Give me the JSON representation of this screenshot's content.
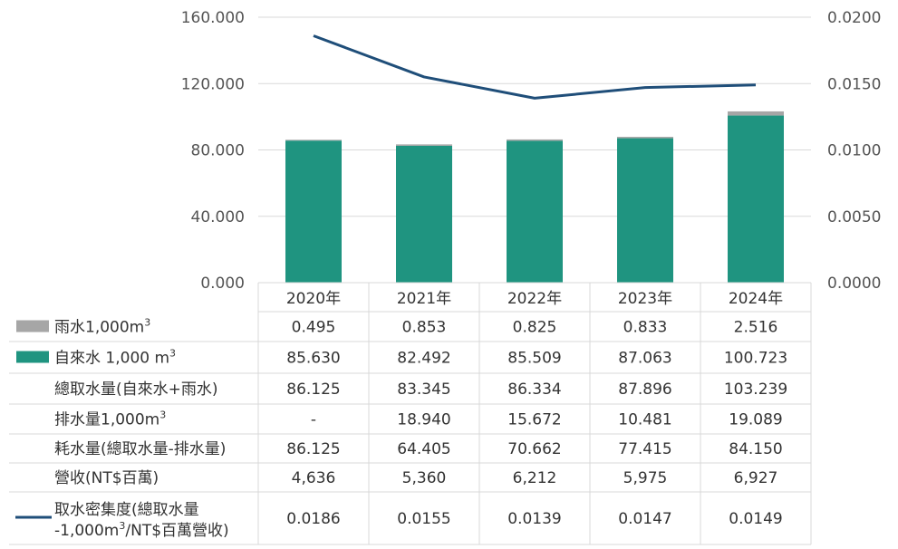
{
  "chart_data": {
    "type": "bar",
    "stacked": true,
    "categories": [
      "2020年",
      "2021年",
      "2022年",
      "2023年",
      "2024年"
    ],
    "y_left": {
      "ylim": [
        0,
        160
      ],
      "ticks": [
        "160.000",
        "120.000",
        "80.000",
        "40.000",
        "0.000"
      ],
      "tick_values": [
        160,
        120,
        80,
        40,
        0
      ]
    },
    "y_right": {
      "ylim": [
        0,
        0.02
      ],
      "ticks": [
        "0.0200",
        "0.0150",
        "0.0100",
        "0.0050",
        "0.0000"
      ],
      "tick_values": [
        0.02,
        0.015,
        0.01,
        0.005,
        0
      ]
    },
    "series": [
      {
        "name": "自來水 1,000 m³",
        "kind": "bar",
        "color": "#1f9480",
        "values": [
          85.63,
          82.492,
          85.509,
          87.063,
          100.723
        ]
      },
      {
        "name": "雨水1,000m³",
        "kind": "bar",
        "color": "#a6a6a6",
        "values": [
          0.495,
          0.853,
          0.825,
          0.833,
          2.516
        ]
      },
      {
        "name": "取水密集度(總取水量-1,000m³/NT$百萬營收)",
        "kind": "line",
        "axis": "right",
        "color": "#1f4e79",
        "values": [
          0.0186,
          0.0155,
          0.0139,
          0.0147,
          0.0149
        ]
      }
    ],
    "table": {
      "rows": [
        {
          "label": "雨水1,000m",
          "sup": "3",
          "legend": "gray-box",
          "cells": [
            "0.495",
            "0.853",
            "0.825",
            "0.833",
            "2.516"
          ]
        },
        {
          "label": "自來水 1,000 m",
          "sup": "3",
          "legend": "green-box",
          "cells": [
            "85.630",
            "82.492",
            "85.509",
            "87.063",
            "100.723"
          ]
        },
        {
          "label": "總取水量(自來水+雨水)",
          "sup": "",
          "legend": "none",
          "cells": [
            "86.125",
            "83.345",
            "86.334",
            "87.896",
            "103.239"
          ]
        },
        {
          "label": "排水量1,000m",
          "sup": "3",
          "legend": "none",
          "cells": [
            "-",
            "18.940",
            "15.672",
            "10.481",
            "19.089"
          ]
        },
        {
          "label": "耗水量(總取水量-排水量)",
          "sup": "",
          "legend": "none",
          "cells": [
            "86.125",
            "64.405",
            "70.662",
            "77.415",
            "84.150"
          ]
        },
        {
          "label": "營收(NT$百萬)",
          "sup": "",
          "legend": "none",
          "cells": [
            "4,636",
            "5,360",
            "6,212",
            "5,975",
            "6,927"
          ]
        },
        {
          "label_line1": "取水密集度(總取水量",
          "label_line2a": "-1,000m",
          "sup": "3",
          "label_line2b": "/NT$百萬營收)",
          "legend": "line",
          "cells": [
            "0.0186",
            "0.0155",
            "0.0139",
            "0.0147",
            "0.0149"
          ]
        }
      ]
    },
    "grid": true,
    "legend_placement": "table-left"
  },
  "colors": {
    "water_bar": "#1f9480",
    "rain_bar": "#a6a6a6",
    "intensity_line": "#1f4e79",
    "grid": "#d9d9d9"
  }
}
